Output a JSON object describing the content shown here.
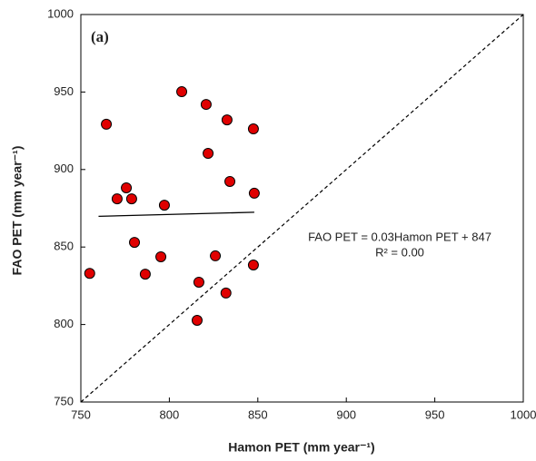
{
  "chart_data": {
    "type": "scatter",
    "panel_label": "(a)",
    "x_label": "Hamon PET (mm year⁻¹)",
    "y_label": "FAO PET (mm year⁻¹)",
    "x": [
      764.4,
      807,
      820.8,
      832.6,
      847.5,
      821.9,
      834.2,
      848,
      775.7,
      770.5,
      778.7,
      797.2,
      780.3,
      795.2,
      826,
      755,
      786.4,
      816.7,
      832,
      847.5,
      815.7
    ],
    "series": [
      {
        "name": "FAO PET",
        "color": "#e00000",
        "values": [
          929.2,
          950.2,
          942,
          932,
          926.2,
          910.4,
          892.3,
          884.7,
          888.2,
          881.1,
          881.1,
          877,
          853,
          843.7,
          844.3,
          833,
          832.5,
          827.3,
          820.3,
          838.4,
          802.7
        ]
      }
    ],
    "fit": {
      "slope": 0.03,
      "intercept": 847,
      "xrange": [
        760,
        848
      ]
    },
    "fit_equation": "FAO PET = 0.03Hamon PET + 847",
    "r_squared": "R² = 0.00",
    "identity_line": true,
    "xlim": [
      750,
      1000
    ],
    "xticks": [
      750,
      800,
      850,
      900,
      950,
      1000
    ],
    "ylim": [
      750,
      1000
    ],
    "yticks": [
      750,
      800,
      850,
      900,
      950,
      1000
    ]
  }
}
